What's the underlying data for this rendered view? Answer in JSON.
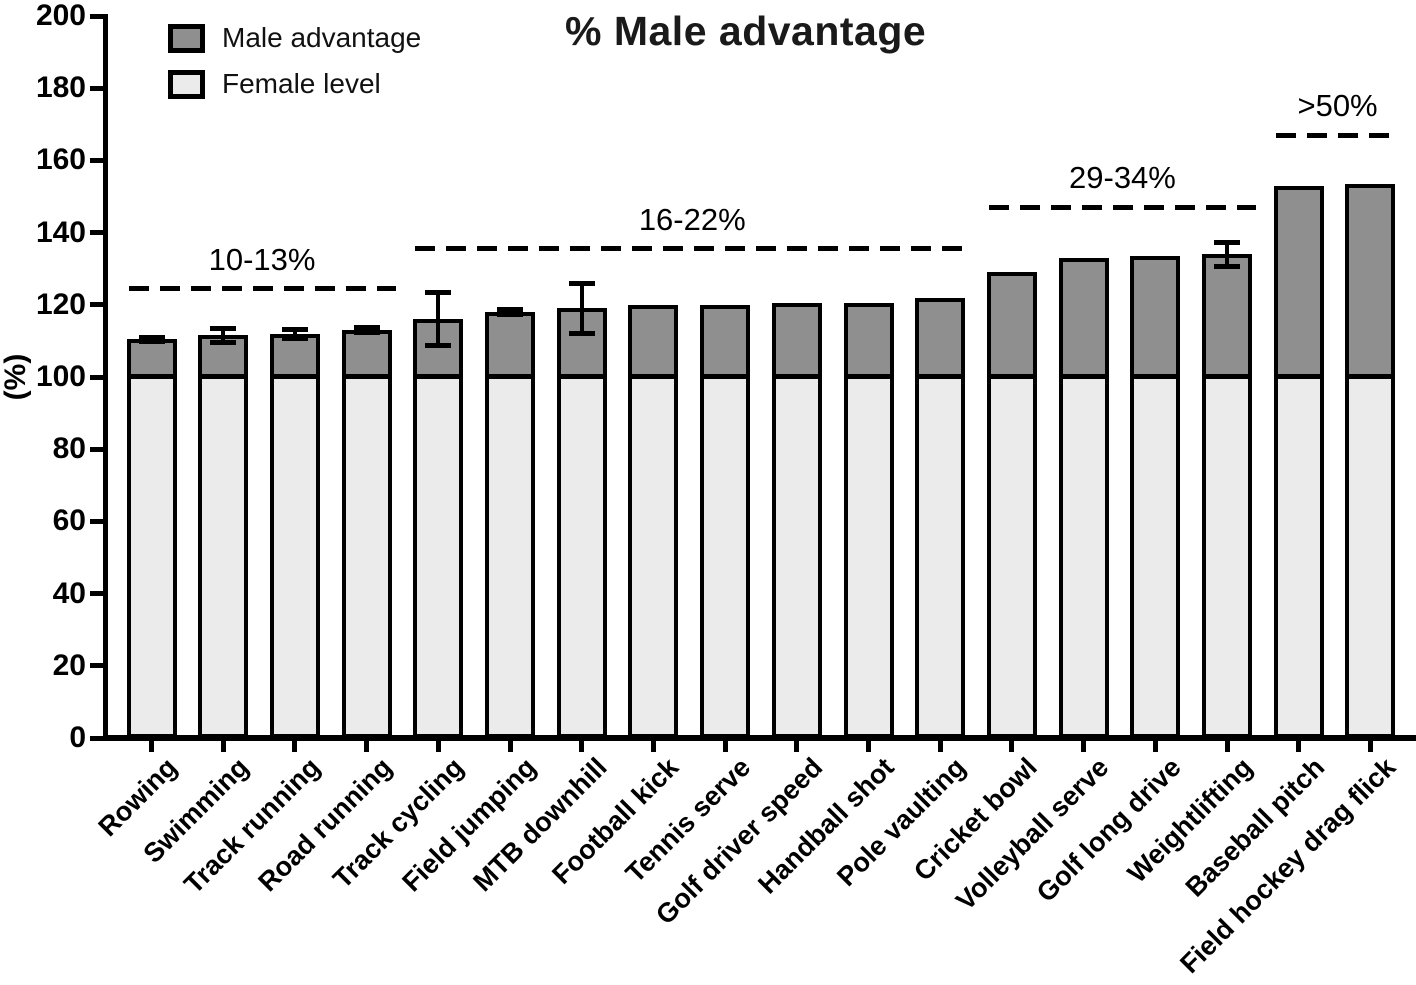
{
  "chart_data": {
    "type": "bar",
    "subtype": "stacked-percentage",
    "title": "% Male advantage",
    "ylabel": "(%)",
    "ylim": [
      0,
      200
    ],
    "ytick_values": [
      0,
      20,
      40,
      60,
      80,
      100,
      120,
      140,
      160,
      180,
      200
    ],
    "ytick_labels": [
      "0",
      "20",
      "40",
      "60",
      "80",
      "100",
      "120",
      "140",
      "160",
      "180",
      "200"
    ],
    "grid": "off",
    "legend_position": "top-left",
    "legend": [
      {
        "label": "Male advantage",
        "color": "#8f8f8f"
      },
      {
        "label": "Female level",
        "color": "#ebebeb"
      }
    ],
    "female_level": 100,
    "categories": [
      "Rowing",
      "Swimming",
      "Track running",
      "Road running",
      "Track cycling",
      "Field jumping",
      "MTB downhill",
      "Football kick",
      "Tennis serve",
      "Golf driver speed",
      "Handball shot",
      "Pole vaulting",
      "Cricket bowl",
      "Volleyball serve",
      "Golf long drive",
      "Weightlifting",
      "Baseball pitch",
      "Field hockey drag flick"
    ],
    "series": [
      {
        "name": "Female level",
        "values": [
          100,
          100,
          100,
          100,
          100,
          100,
          100,
          100,
          100,
          100,
          100,
          100,
          100,
          100,
          100,
          100,
          100,
          100
        ]
      },
      {
        "name": "Male advantage",
        "values": [
          10.5,
          11.5,
          12,
          13,
          16,
          18,
          19,
          20,
          20,
          20.5,
          20.5,
          22,
          29,
          33,
          33.5,
          34,
          53,
          53.5
        ]
      }
    ],
    "totals": [
      110.5,
      111.5,
      112,
      113,
      116,
      118,
      119,
      120,
      120,
      120.5,
      120.5,
      122,
      129,
      133,
      133.5,
      134,
      153,
      153.5
    ],
    "error_bars": [
      0.7,
      2,
      1.4,
      0.8,
      7.5,
      0.8,
      7,
      0,
      0,
      0,
      0,
      0,
      0,
      0,
      0,
      3.5,
      0,
      0
    ],
    "group_annotations": [
      {
        "label": "10-13%",
        "from_index": 0,
        "to_index": 3,
        "line_value": 124.5
      },
      {
        "label": "16-22%",
        "from_index": 4,
        "to_index": 11,
        "line_value": 135.5
      },
      {
        "label": "29-34%",
        "from_index": 12,
        "to_index": 15,
        "line_value": 147
      },
      {
        "label": ">50%",
        "from_index": 16,
        "to_index": 17,
        "line_value": 167
      }
    ],
    "colors": {
      "male_advantage": "#8f8f8f",
      "female_level": "#ebebeb",
      "axis": "#000000",
      "background": "#ffffff"
    }
  }
}
